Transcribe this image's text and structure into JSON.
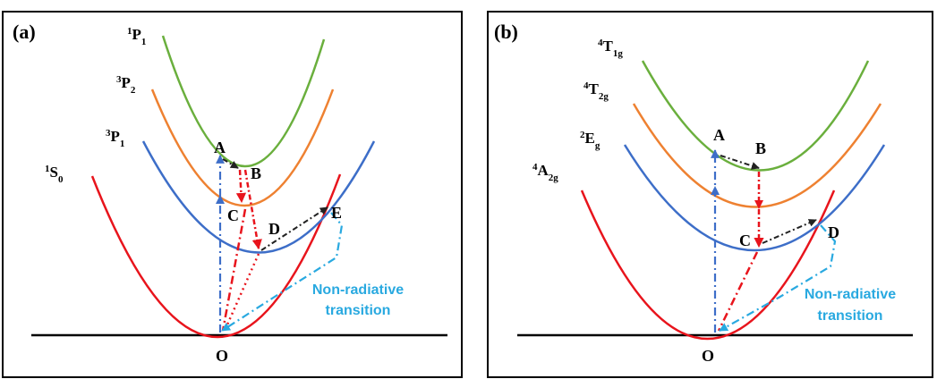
{
  "colors": {
    "red": "#e8141c",
    "blue": "#3d6ec8",
    "orange": "#ee8131",
    "green": "#6aaf3d",
    "cyan": "#29a9e0",
    "black": "#222222",
    "frame": "#000000"
  },
  "panel_a": {
    "label": "(a)",
    "states": {
      "s0": {
        "main": "S",
        "sup": "1",
        "sub": "0"
      },
      "p1_triplet": {
        "main": "P",
        "sup": "3",
        "sub": "1"
      },
      "p2": {
        "main": "P",
        "sup": "3",
        "sub": "2"
      },
      "p1_singlet": {
        "main": "P",
        "sup": "1",
        "sub": "1"
      }
    },
    "points": {
      "a": "A",
      "b": "B",
      "c": "C",
      "d": "D",
      "e": "E",
      "o": "O"
    },
    "note_line1": "Non-radiative",
    "note_line2": "transition"
  },
  "panel_b": {
    "label": "(b)",
    "states": {
      "a2g": {
        "main": "A",
        "sup": "4",
        "sub": "2g"
      },
      "eg": {
        "main": "E",
        "sup": "2",
        "sub": "g"
      },
      "t2g": {
        "main": "T",
        "sup": "4",
        "sub": "2g"
      },
      "t1g": {
        "main": "T",
        "sup": "4",
        "sub": "1g"
      }
    },
    "points": {
      "a": "A",
      "b": "B",
      "c": "C",
      "d": "D",
      "o": "O"
    },
    "note_line1": "Non-radiative",
    "note_line2": "transition"
  }
}
